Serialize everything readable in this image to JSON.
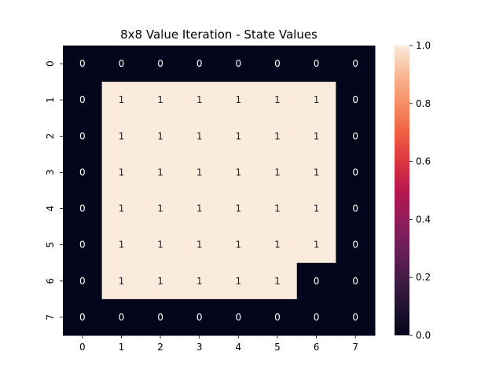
{
  "chart_data": {
    "type": "heatmap",
    "title": "8x8 Value Iteration - State Values",
    "xlabel": "",
    "ylabel": "",
    "x_tick_labels": [
      "0",
      "1",
      "2",
      "3",
      "4",
      "5",
      "6",
      "7"
    ],
    "y_tick_labels": [
      "0",
      "1",
      "2",
      "3",
      "4",
      "5",
      "6",
      "7"
    ],
    "values": [
      [
        0,
        0,
        0,
        0,
        0,
        0,
        0,
        0
      ],
      [
        0,
        1,
        1,
        1,
        1,
        1,
        1,
        0
      ],
      [
        0,
        1,
        1,
        1,
        1,
        1,
        1,
        0
      ],
      [
        0,
        1,
        1,
        1,
        1,
        1,
        1,
        0
      ],
      [
        0,
        1,
        1,
        1,
        1,
        1,
        1,
        0
      ],
      [
        0,
        1,
        1,
        1,
        1,
        1,
        1,
        0
      ],
      [
        0,
        1,
        1,
        1,
        1,
        1,
        0,
        0
      ],
      [
        0,
        0,
        0,
        0,
        0,
        0,
        0,
        0
      ]
    ],
    "annotations": true,
    "colormap": "rocket",
    "vmin": 0.0,
    "vmax": 1.0,
    "colorbar_ticks": [
      "0.0",
      "0.2",
      "0.4",
      "0.6",
      "0.8",
      "1.0"
    ],
    "colors": {
      "low": "#03051a",
      "high": "#faebdd",
      "annotation_on_low": "#ffffff",
      "annotation_on_high": "#262626"
    }
  }
}
